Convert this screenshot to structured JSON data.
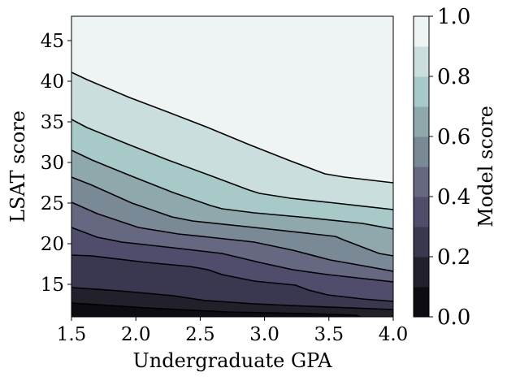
{
  "chart_data": {
    "type": "contour",
    "xlabel": "Undergraduate GPA",
    "ylabel": "LSAT score",
    "xlim": [
      1.5,
      4.0
    ],
    "ylim": [
      11,
      48
    ],
    "xticks": [
      1.5,
      2.0,
      2.5,
      3.0,
      3.5,
      4.0
    ],
    "xtick_labels": [
      "1.5",
      "2.0",
      "2.5",
      "3.0",
      "3.5",
      "4.0"
    ],
    "yticks": [
      15,
      20,
      25,
      30,
      35,
      40,
      45
    ],
    "ytick_labels": [
      "15",
      "20",
      "25",
      "30",
      "35",
      "40",
      "45"
    ],
    "grid": false,
    "levels": [
      0.0,
      0.1,
      0.2,
      0.3,
      0.4,
      0.5,
      0.6,
      0.7,
      0.8,
      0.9,
      1.0
    ],
    "band_colors": [
      "#0d0c12",
      "#22212b",
      "#393850",
      "#4f4d6b",
      "#666881",
      "#7a8996",
      "#8ea8ac",
      "#a7c9c7",
      "#c9dedd",
      "#edf4f3"
    ],
    "contours": [
      {
        "level": 0.1,
        "gpa": [
          1.5,
          2.08,
          2.71,
          3.34,
          3.71,
          3.75
        ],
        "lsat": [
          12.7,
          12.1,
          11.6,
          11.4,
          11.2,
          11.0
        ]
      },
      {
        "level": 0.2,
        "gpa": [
          1.5,
          1.87,
          2.29,
          2.54,
          2.92,
          3.34,
          4.0
        ],
        "lsat": [
          14.6,
          14.2,
          13.6,
          13.0,
          12.6,
          12.3,
          11.9
        ]
      },
      {
        "level": 0.3,
        "gpa": [
          1.5,
          1.66,
          2.08,
          2.42,
          2.56,
          2.67,
          2.92,
          3.24,
          3.34,
          3.49,
          3.76,
          4.0
        ],
        "lsat": [
          18.6,
          18.5,
          17.7,
          17.2,
          16.8,
          16.2,
          15.4,
          14.9,
          14.3,
          13.7,
          13.2,
          12.9
        ]
      },
      {
        "level": 0.4,
        "gpa": [
          1.5,
          1.7,
          1.89,
          2.29,
          2.67,
          2.96,
          3.22,
          3.49,
          4.0
        ],
        "lsat": [
          22.0,
          20.8,
          20.2,
          19.5,
          18.8,
          17.7,
          16.8,
          16.2,
          15.3
        ]
      },
      {
        "level": 0.5,
        "gpa": [
          1.5,
          1.7,
          2.02,
          2.33,
          2.63,
          2.92,
          3.22,
          3.51,
          3.76,
          4.0
        ],
        "lsat": [
          25.1,
          23.7,
          22.0,
          21.2,
          20.7,
          20.2,
          19.2,
          18.0,
          17.3,
          16.6
        ]
      },
      {
        "level": 0.6,
        "gpa": [
          1.5,
          1.66,
          1.97,
          2.28,
          2.44,
          2.92,
          3.55,
          3.61,
          3.89,
          4.0
        ],
        "lsat": [
          28.2,
          27.2,
          25.0,
          23.3,
          22.8,
          22.0,
          20.9,
          20.5,
          18.8,
          18.5
        ]
      },
      {
        "level": 0.7,
        "gpa": [
          1.5,
          1.66,
          1.97,
          2.29,
          2.58,
          2.67,
          2.92,
          3.34,
          3.76,
          4.0
        ],
        "lsat": [
          31.5,
          30.3,
          28.3,
          26.3,
          24.7,
          24.3,
          23.8,
          23.2,
          22.5,
          21.8
        ]
      },
      {
        "level": 0.8,
        "gpa": [
          1.5,
          1.62,
          1.93,
          2.25,
          2.56,
          2.88,
          2.96,
          3.2,
          3.55,
          4.0
        ],
        "lsat": [
          35.3,
          34.3,
          32.3,
          30.3,
          28.5,
          26.6,
          26.2,
          25.6,
          25.0,
          24.2
        ]
      },
      {
        "level": 0.9,
        "gpa": [
          1.5,
          1.62,
          1.95,
          2.25,
          2.56,
          2.88,
          3.2,
          3.47,
          3.62,
          4.0
        ],
        "lsat": [
          41.1,
          40.2,
          38.0,
          36.2,
          34.3,
          32.2,
          30.2,
          28.6,
          28.2,
          27.5
        ]
      }
    ],
    "colorbar": {
      "label": "Model score",
      "range": [
        0.0,
        1.0
      ],
      "ticks": [
        0.0,
        0.2,
        0.4,
        0.6,
        0.8,
        1.0
      ],
      "tick_labels": [
        "0.0",
        "0.2",
        "0.4",
        "0.6",
        "0.8",
        "1.0"
      ],
      "placement": "right"
    }
  }
}
